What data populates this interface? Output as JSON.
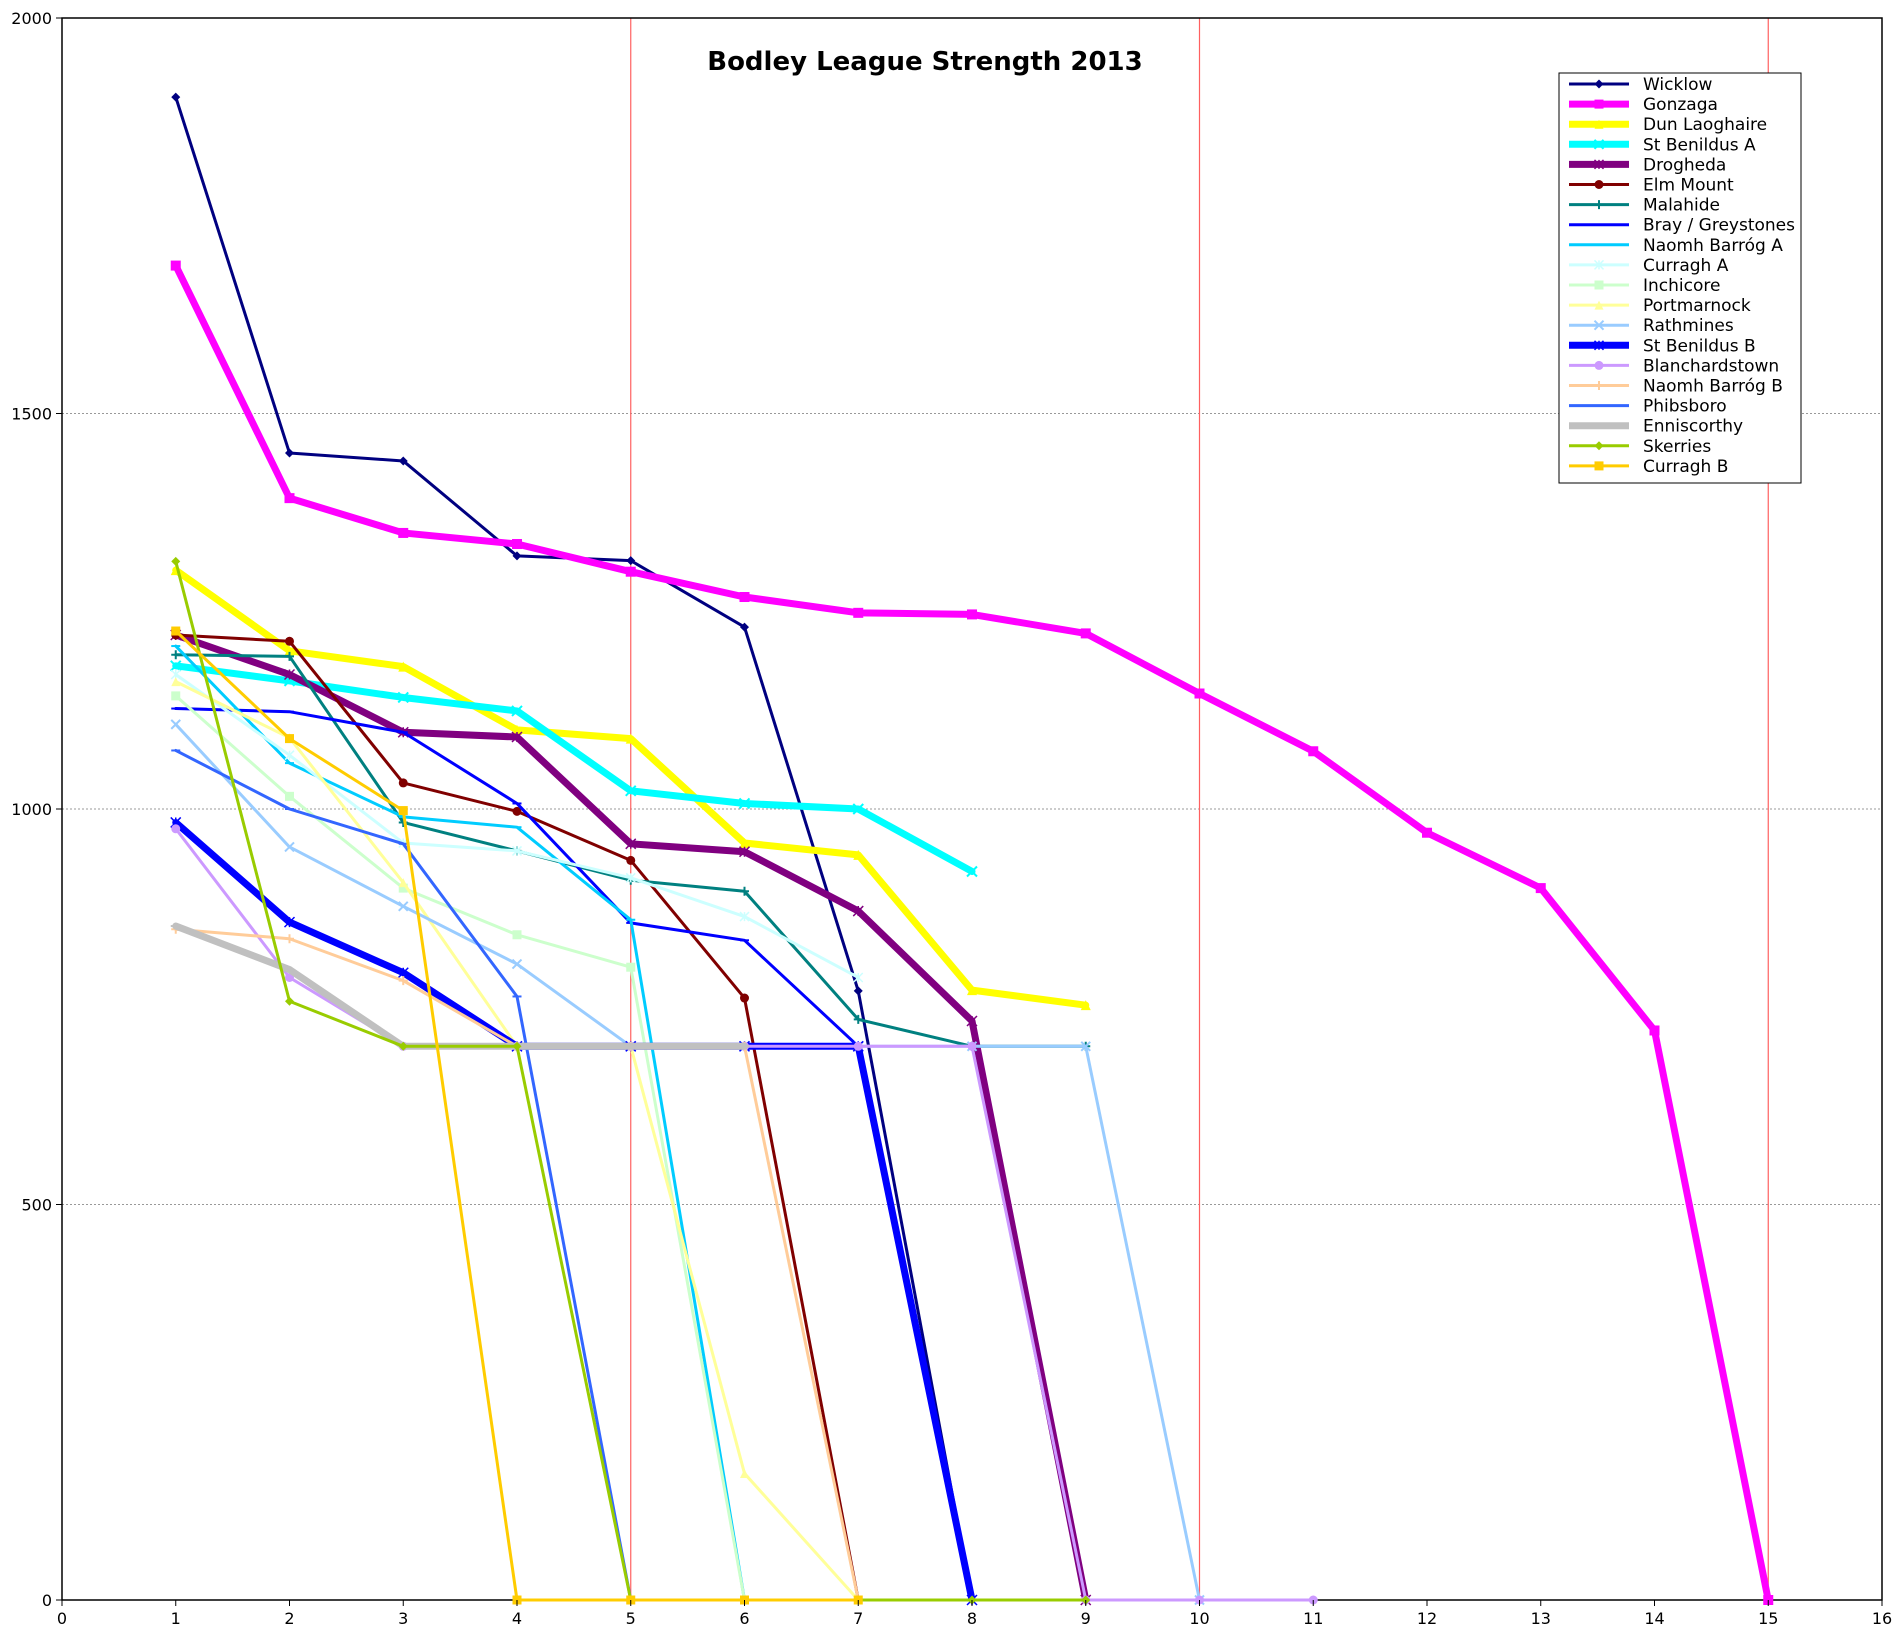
{
  "chart_data": {
    "type": "line",
    "title": "Bodley League Strength 2013",
    "xlabel": "",
    "ylabel": "",
    "xlim": [
      0,
      16
    ],
    "ylim": [
      0,
      2000
    ],
    "x_ticks": [
      0,
      1,
      2,
      3,
      4,
      5,
      6,
      7,
      8,
      9,
      10,
      11,
      12,
      13,
      14,
      15,
      16
    ],
    "y_ticks": [
      0,
      500,
      1000,
      1500,
      2000
    ],
    "horizontal_grid": true,
    "vertical_reference_lines_x": [
      5,
      10,
      15
    ],
    "reference_line_color": "#ff6060",
    "legend_position": "top-right",
    "series": [
      {
        "name": "Wicklow",
        "color": "#000080",
        "width": 3,
        "marker": "diamond",
        "x": [
          1,
          2,
          3,
          4,
          5,
          6,
          7,
          8
        ],
        "y": [
          1900,
          1450,
          1440,
          1320,
          1314,
          1230,
          770,
          0
        ]
      },
      {
        "name": "Gonzaga",
        "color": "#ff00ff",
        "width": 7,
        "marker": "square",
        "x": [
          1,
          2,
          3,
          4,
          5,
          6,
          7,
          8,
          9,
          10,
          11,
          12,
          13,
          14,
          15
        ],
        "y": [
          1687,
          1393,
          1349,
          1335,
          1300,
          1268,
          1248,
          1246,
          1222,
          1146,
          1073,
          970,
          900,
          720,
          0
        ]
      },
      {
        "name": "Dun Laoghaire",
        "color": "#ffff00",
        "width": 7,
        "marker": "triangle",
        "x": [
          1,
          2,
          3,
          4,
          5,
          6,
          7,
          8,
          9
        ],
        "y": [
          1302,
          1200,
          1180,
          1100,
          1089,
          957,
          942,
          771,
          752
        ]
      },
      {
        "name": "St Benildus A",
        "color": "#00ffff",
        "width": 7,
        "marker": "x",
        "x": [
          1,
          2,
          3,
          4,
          5,
          6,
          7,
          8
        ],
        "y": [
          1181,
          1162,
          1141,
          1124,
          1023,
          1007,
          1000,
          921
        ]
      },
      {
        "name": "Drogheda",
        "color": "#800080",
        "width": 7,
        "marker": "star",
        "x": [
          1,
          2,
          3,
          4,
          5,
          6,
          7,
          8,
          9
        ],
        "y": [
          1220,
          1170,
          1097,
          1091,
          956,
          946,
          871,
          732,
          0
        ]
      },
      {
        "name": "Elm Mount",
        "color": "#800000",
        "width": 3,
        "marker": "circle",
        "x": [
          1,
          2,
          3,
          4,
          5,
          6,
          7
        ],
        "y": [
          1220,
          1212,
          1033,
          997,
          935,
          761,
          0
        ]
      },
      {
        "name": "Malahide",
        "color": "#008080",
        "width": 3,
        "marker": "plus",
        "x": [
          1,
          2,
          3,
          4,
          5,
          6,
          7,
          8,
          9
        ],
        "y": [
          1195,
          1193,
          983,
          947,
          910,
          896,
          734,
          700,
          700
        ]
      },
      {
        "name": "Bray / Greystones",
        "color": "#0000ff",
        "width": 3,
        "marker": "dash",
        "x": [
          1,
          2,
          3,
          4,
          5,
          6,
          7
        ],
        "y": [
          1127,
          1123,
          1097,
          1007,
          856,
          834,
          700
        ]
      },
      {
        "name": "Naomh Barróg A",
        "color": "#00ccff",
        "width": 3,
        "marker": "dash",
        "x": [
          1,
          2,
          3,
          4,
          5,
          6
        ],
        "y": [
          1206,
          1058,
          990,
          977,
          860,
          0
        ]
      },
      {
        "name": "Curragh A",
        "color": "#ccffff",
        "width": 3,
        "marker": "star",
        "x": [
          1,
          2,
          3,
          4,
          5,
          6,
          7
        ],
        "y": [
          1170,
          1068,
          957,
          947,
          913,
          864,
          787
        ]
      },
      {
        "name": "Inchicore",
        "color": "#ccffcc",
        "width": 3,
        "marker": "square",
        "x": [
          1,
          2,
          3,
          4,
          5,
          6
        ],
        "y": [
          1143,
          1016,
          900,
          841,
          800,
          0
        ]
      },
      {
        "name": "Portmarnock",
        "color": "#ffff99",
        "width": 3,
        "marker": "triangle",
        "x": [
          1,
          2,
          3,
          4,
          5,
          6,
          7
        ],
        "y": [
          1161,
          1090,
          907,
          700,
          700,
          160,
          0
        ]
      },
      {
        "name": "Rathmines",
        "color": "#99ccff",
        "width": 3,
        "marker": "x",
        "x": [
          1,
          2,
          3,
          4,
          5,
          6,
          7,
          8,
          9,
          10
        ],
        "y": [
          1107,
          952,
          877,
          804,
          700,
          700,
          700,
          700,
          700,
          0
        ]
      },
      {
        "name": "St Benildus B",
        "color": "#0000ff",
        "width": 7,
        "marker": "star",
        "x": [
          1,
          2,
          3,
          4,
          5,
          6,
          7,
          8
        ],
        "y": [
          983,
          857,
          793,
          700,
          700,
          700,
          700,
          0
        ]
      },
      {
        "name": "Blanchardstown",
        "color": "#cc99ff",
        "width": 3,
        "marker": "circle",
        "x": [
          1,
          2,
          3,
          4,
          5,
          6,
          7,
          8,
          9,
          10,
          11
        ],
        "y": [
          975,
          787,
          700,
          700,
          700,
          700,
          700,
          700,
          0,
          0,
          0
        ]
      },
      {
        "name": "Naomh Barróg B",
        "color": "#ffcc99",
        "width": 3,
        "marker": "plus",
        "x": [
          1,
          2,
          3,
          4,
          5,
          6,
          7
        ],
        "y": [
          848,
          836,
          783,
          700,
          700,
          700,
          0
        ]
      },
      {
        "name": "Phibsboro",
        "color": "#3366ff",
        "width": 3,
        "marker": "dash",
        "x": [
          1,
          2,
          3,
          4,
          5
        ],
        "y": [
          1074,
          1000,
          956,
          763,
          0
        ]
      },
      {
        "name": "Enniscorthy",
        "color": "#c0c0c0",
        "width": 7,
        "marker": "dash",
        "x": [
          1,
          2,
          3,
          4,
          5,
          6
        ],
        "y": [
          852,
          797,
          700,
          700,
          700,
          700
        ]
      },
      {
        "name": "Skerries",
        "color": "#99cc00",
        "width": 3,
        "marker": "diamond",
        "x": [
          1,
          2,
          3,
          4,
          5,
          6,
          7,
          8,
          9
        ],
        "y": [
          1313,
          757,
          700,
          700,
          0,
          0,
          0,
          0,
          0
        ]
      },
      {
        "name": "Curragh B",
        "color": "#ffcc00",
        "width": 3,
        "marker": "square",
        "x": [
          1,
          2,
          3,
          4,
          5,
          6,
          7
        ],
        "y": [
          1225,
          1089,
          998,
          0,
          0,
          0,
          0
        ]
      }
    ]
  }
}
